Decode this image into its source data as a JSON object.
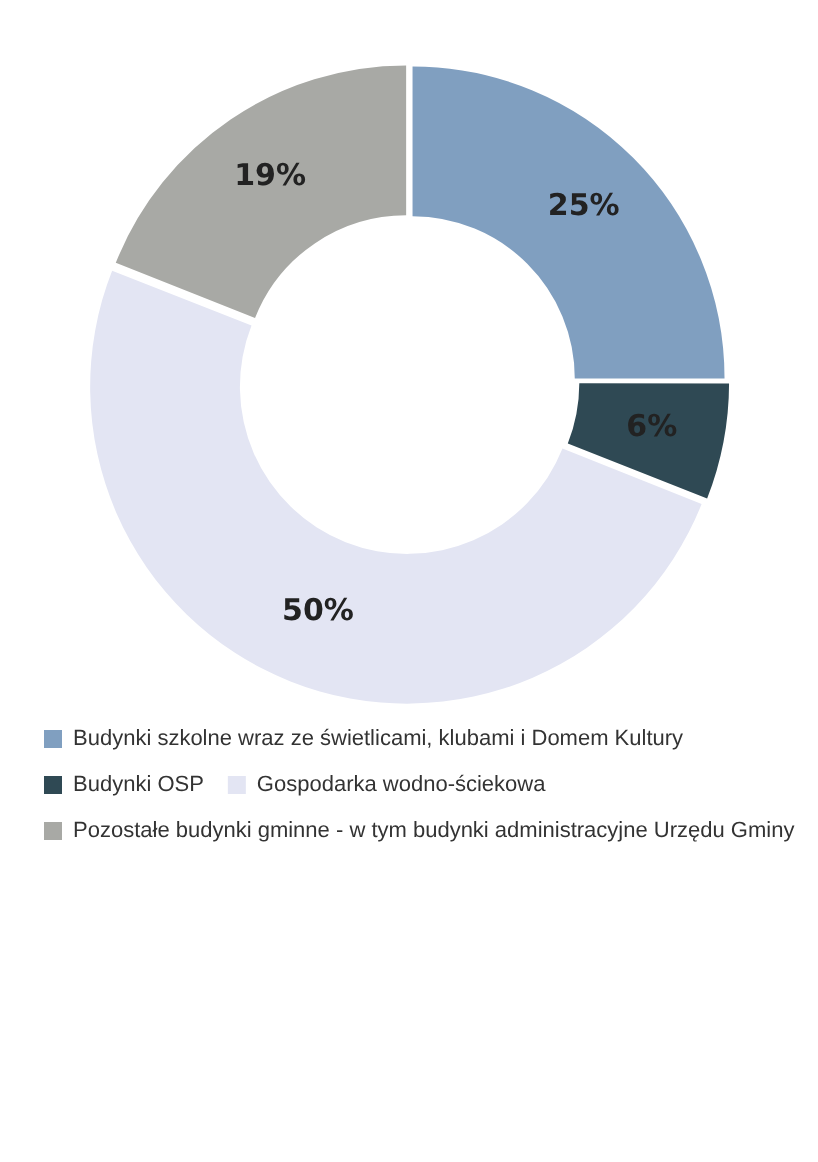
{
  "chart_data": {
    "type": "donut",
    "categories": [
      "Budynki szkolne wraz ze świetlicami, klubami i Domem Kultury",
      "Budynki OSP",
      "Gospodarka wodno-ściekowa",
      "Pozostałe budynki gminne - w tym budynki administracyjne Urzędu Gminy"
    ],
    "values": [
      25,
      6,
      50,
      19
    ],
    "colors": [
      "#809fc0",
      "#2f4954",
      "#e3e5f3",
      "#a8a9a5"
    ],
    "value_labels": [
      "25%",
      "6%",
      "50%",
      "19%"
    ],
    "legend": "bottom"
  }
}
